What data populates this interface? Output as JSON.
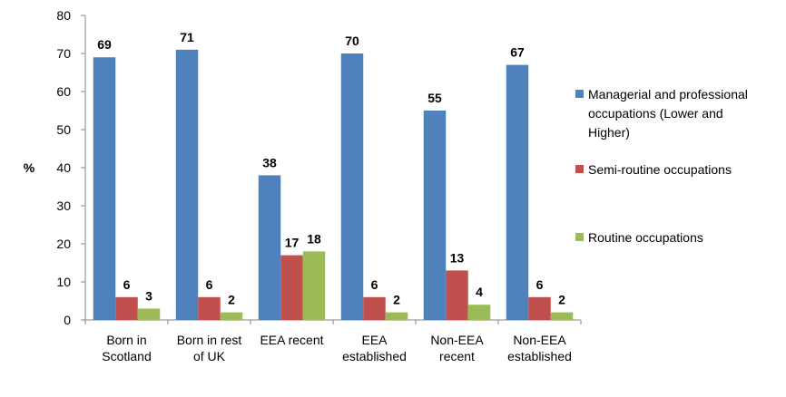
{
  "chart_data": {
    "type": "bar",
    "title": "",
    "xlabel": "",
    "ylabel": "%",
    "ylim": [
      0,
      80
    ],
    "yticks": [
      0,
      10,
      20,
      30,
      40,
      50,
      60,
      70,
      80
    ],
    "grid": false,
    "legend_position": "right",
    "categories": [
      [
        "Born in",
        "Scotland"
      ],
      [
        "Born in rest",
        "of UK"
      ],
      [
        "EEA recent"
      ],
      [
        "EEA",
        "established"
      ],
      [
        "Non-EEA",
        "recent"
      ],
      [
        "Non-EEA",
        "established"
      ]
    ],
    "series": [
      {
        "name": "Managerial and professional occupations (Lower and Higher)",
        "legend_lines": [
          "Managerial and professional",
          "occupations (Lower and",
          "Higher)"
        ],
        "color": "#4F81BD",
        "values": [
          69,
          71,
          38,
          70,
          55,
          67
        ],
        "labels": [
          "69",
          "71",
          "38",
          "70",
          "55",
          "67"
        ]
      },
      {
        "name": "Semi-routine occupations",
        "legend_lines": [
          "Semi-routine occupations"
        ],
        "color": "#C0504D",
        "values": [
          6,
          6,
          17,
          6,
          13,
          6
        ],
        "labels": [
          "6",
          "6",
          "17",
          "6",
          "13",
          "6"
        ]
      },
      {
        "name": "Routine occupations",
        "legend_lines": [
          "Routine occupations"
        ],
        "color": "#9BBB59",
        "values": [
          3,
          2,
          18,
          2,
          4,
          2
        ],
        "labels": [
          "3",
          "2",
          "18",
          "2",
          "4",
          "2"
        ]
      }
    ]
  }
}
